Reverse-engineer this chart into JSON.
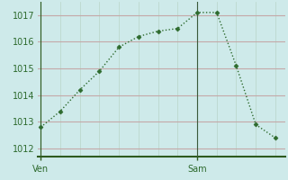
{
  "x_values": [
    0,
    3,
    6,
    9,
    12,
    15,
    18,
    21,
    24,
    27,
    30,
    33,
    36
  ],
  "y_values": [
    1012.8,
    1013.4,
    1014.2,
    1014.9,
    1015.8,
    1016.2,
    1016.4,
    1016.5,
    1017.1,
    1017.1,
    1015.1,
    1012.9,
    1012.4
  ],
  "day_labels": [
    "Ven",
    "Sam"
  ],
  "day_positions": [
    0,
    24
  ],
  "yticks": [
    1012,
    1013,
    1014,
    1015,
    1016,
    1017
  ],
  "ylim": [
    1011.7,
    1017.5
  ],
  "xlim": [
    -0.5,
    37.5
  ],
  "line_color": "#2d6a2d",
  "marker": "D",
  "marker_size": 2.5,
  "bg_color": "#ceeaea",
  "grid_color_major": "#c4a8a8",
  "grid_color_minor": "#b8d4c8",
  "axis_color": "#2d5a1e",
  "tick_label_color": "#2d6a2d",
  "line_width": 1.0,
  "tick_fontsize": 7
}
